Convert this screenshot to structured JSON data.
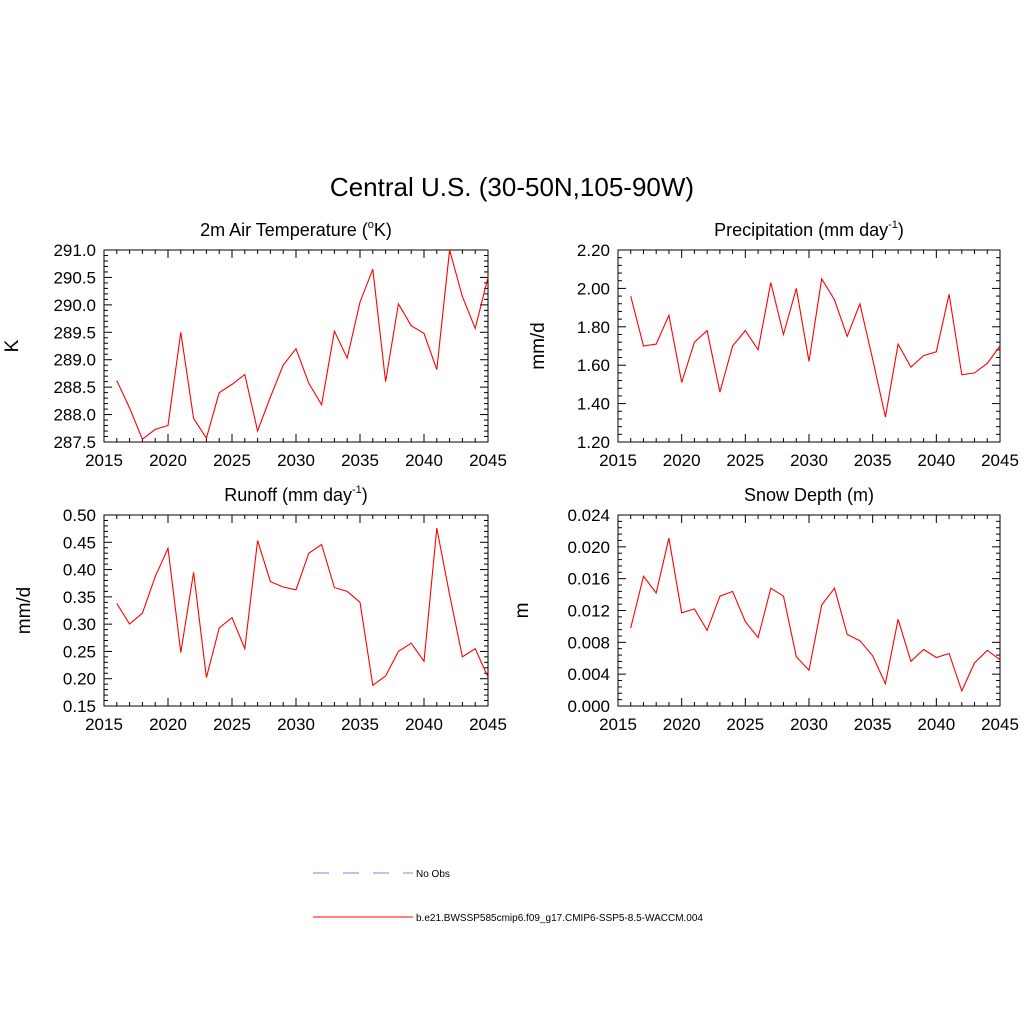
{
  "figure": {
    "title": "Central U.S. (30-50N,105-90W)"
  },
  "chart_data": [
    {
      "type": "line",
      "title_main": "2m Air Temperature (",
      "title_sup_pre": "o",
      "title_after_sup": "K)",
      "ylabel": "K",
      "xlabel": "",
      "xlim": [
        2015,
        2045
      ],
      "ylim": [
        287.5,
        291.0
      ],
      "x_ticks": [
        "2015",
        "2020",
        "2025",
        "2030",
        "2035",
        "2040",
        "2045"
      ],
      "y_ticks": [
        "287.5",
        "288.0",
        "288.5",
        "289.0",
        "289.5",
        "290.0",
        "290.5",
        "291.0"
      ],
      "series": [
        {
          "name": "b.e21.BWSSP585cmip6.f09_g17.CMIP6-SSP5-8.5-WACCM.004",
          "x": [
            2016,
            2017,
            2018,
            2019,
            2020,
            2021,
            2022,
            2023,
            2024,
            2025,
            2026,
            2027,
            2028,
            2029,
            2030,
            2031,
            2032,
            2033,
            2034,
            2035,
            2036,
            2037,
            2038,
            2039,
            2040,
            2041,
            2042,
            2043,
            2044,
            2045
          ],
          "values": [
            288.62,
            288.12,
            287.55,
            287.73,
            287.8,
            289.5,
            287.93,
            287.57,
            288.4,
            288.55,
            288.73,
            287.7,
            288.32,
            288.9,
            289.2,
            288.57,
            288.18,
            289.52,
            289.03,
            290.05,
            290.65,
            288.6,
            290.02,
            289.62,
            289.48,
            288.82,
            291.0,
            290.15,
            289.57,
            290.5
          ]
        }
      ]
    },
    {
      "type": "line",
      "title_main": "Precipitation (mm day",
      "title_sup_pre": "-1",
      "title_after_sup": ")",
      "ylabel": "mm/d",
      "xlabel": "",
      "xlim": [
        2015,
        2045
      ],
      "ylim": [
        1.2,
        2.2
      ],
      "x_ticks": [
        "2015",
        "2020",
        "2025",
        "2030",
        "2035",
        "2040",
        "2045"
      ],
      "y_ticks": [
        "1.20",
        "1.40",
        "1.60",
        "1.80",
        "2.00",
        "2.20"
      ],
      "series": [
        {
          "name": "b.e21.BWSSP585cmip6.f09_g17.CMIP6-SSP5-8.5-WACCM.004",
          "x": [
            2016,
            2017,
            2018,
            2019,
            2020,
            2021,
            2022,
            2023,
            2024,
            2025,
            2026,
            2027,
            2028,
            2029,
            2030,
            2031,
            2032,
            2033,
            2034,
            2035,
            2036,
            2037,
            2038,
            2039,
            2040,
            2041,
            2042,
            2043,
            2044,
            2045
          ],
          "values": [
            1.96,
            1.7,
            1.71,
            1.86,
            1.51,
            1.72,
            1.78,
            1.46,
            1.7,
            1.78,
            1.68,
            2.03,
            1.76,
            2.0,
            1.62,
            2.05,
            1.94,
            1.75,
            1.92,
            1.63,
            1.33,
            1.71,
            1.59,
            1.65,
            1.67,
            1.97,
            1.55,
            1.56,
            1.61,
            1.7
          ]
        }
      ]
    },
    {
      "type": "line",
      "title_main": "Runoff (mm day",
      "title_sup_pre": "-1",
      "title_after_sup": ")",
      "ylabel": "mm/d",
      "xlabel": "",
      "xlim": [
        2015,
        2045
      ],
      "ylim": [
        0.15,
        0.5
      ],
      "x_ticks": [
        "2015",
        "2020",
        "2025",
        "2030",
        "2035",
        "2040",
        "2045"
      ],
      "y_ticks": [
        "0.15",
        "0.20",
        "0.25",
        "0.30",
        "0.35",
        "0.40",
        "0.45",
        "0.50"
      ],
      "series": [
        {
          "name": "b.e21.BWSSP585cmip6.f09_g17.CMIP6-SSP5-8.5-WACCM.004",
          "x": [
            2016,
            2017,
            2018,
            2019,
            2020,
            2021,
            2022,
            2023,
            2024,
            2025,
            2026,
            2027,
            2028,
            2029,
            2030,
            2031,
            2032,
            2033,
            2034,
            2035,
            2036,
            2037,
            2038,
            2039,
            2040,
            2041,
            2042,
            2043,
            2044,
            2045
          ],
          "values": [
            0.338,
            0.3,
            0.32,
            0.387,
            0.439,
            0.248,
            0.395,
            0.202,
            0.293,
            0.312,
            0.255,
            0.453,
            0.378,
            0.368,
            0.363,
            0.43,
            0.446,
            0.367,
            0.36,
            0.34,
            0.188,
            0.205,
            0.25,
            0.265,
            0.232,
            0.476,
            0.354,
            0.24,
            0.255,
            0.203
          ]
        }
      ]
    },
    {
      "type": "line",
      "title_main": "Snow Depth (m)",
      "title_sup_pre": "",
      "title_after_sup": "",
      "ylabel": "m",
      "xlabel": "",
      "xlim": [
        2015,
        2045
      ],
      "ylim": [
        0.0,
        0.024
      ],
      "x_ticks": [
        "2015",
        "2020",
        "2025",
        "2030",
        "2035",
        "2040",
        "2045"
      ],
      "y_ticks": [
        "0.000",
        "0.004",
        "0.008",
        "0.012",
        "0.016",
        "0.020",
        "0.024"
      ],
      "series": [
        {
          "name": "b.e21.BWSSP585cmip6.f09_g17.CMIP6-SSP5-8.5-WACCM.004",
          "x": [
            2016,
            2017,
            2018,
            2019,
            2020,
            2021,
            2022,
            2023,
            2024,
            2025,
            2026,
            2027,
            2028,
            2029,
            2030,
            2031,
            2032,
            2033,
            2034,
            2035,
            2036,
            2037,
            2038,
            2039,
            2040,
            2041,
            2042,
            2043,
            2044,
            2045
          ],
          "values": [
            0.0098,
            0.0163,
            0.0142,
            0.0211,
            0.0117,
            0.0122,
            0.0095,
            0.0138,
            0.0144,
            0.0106,
            0.0086,
            0.0148,
            0.0138,
            0.0062,
            0.0045,
            0.0127,
            0.0148,
            0.009,
            0.0082,
            0.0063,
            0.0028,
            0.0109,
            0.0056,
            0.0071,
            0.0061,
            0.0066,
            0.0019,
            0.0054,
            0.007,
            0.0058
          ]
        }
      ]
    }
  ],
  "legend": {
    "entries": [
      {
        "label": "No Obs",
        "color": "#9c9cf0",
        "style": "dashed"
      },
      {
        "label": "b.e21.BWSSP585cmip6.f09_g17.CMIP6-SSP5-8.5-WACCM.004",
        "color": "#ff0000",
        "style": "solid"
      }
    ]
  },
  "colors": {
    "series": "#ff0000",
    "axis": "#000000"
  }
}
